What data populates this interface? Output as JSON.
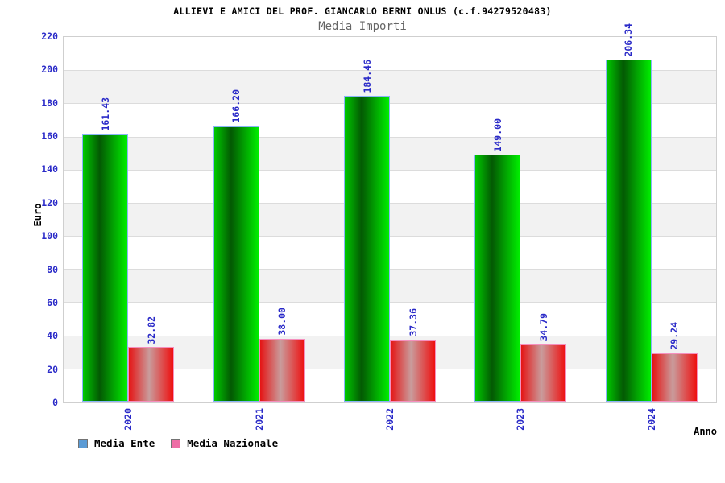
{
  "title": "ALLIEVI E AMICI DEL PROF. GIANCARLO BERNI ONLUS (c.f.94279520483)",
  "subtitle": "Media Importi",
  "axes": {
    "y_label": "Euro",
    "x_label": "Anno"
  },
  "legend": [
    {
      "label": "Media Ente",
      "swatch_color": "#5b9bd5"
    },
    {
      "label": "Media Nazionale",
      "swatch_color": "#ee6ea6"
    }
  ],
  "colors": {
    "text_blue": "#2a2ac8",
    "grid_line": "#dcdcdc",
    "band_gray": "#f2f2f2",
    "plot_border": "#cfcfcf",
    "green_bar_edge": "#8ab4f8",
    "red_bar_edge": "#f590be"
  },
  "chart_data": {
    "type": "bar",
    "title": "Media Importi",
    "xlabel": "Anno",
    "ylabel": "Euro",
    "categories": [
      "2020",
      "2021",
      "2022",
      "2023",
      "2024"
    ],
    "series": [
      {
        "name": "Media Ente",
        "values": [
          161.43,
          166.2,
          184.46,
          149.0,
          206.34
        ],
        "labels": [
          "161.43",
          "166.20",
          "184.46",
          "149.00",
          "206.34"
        ],
        "style": "green"
      },
      {
        "name": "Media Nazionale",
        "values": [
          32.82,
          38.0,
          37.36,
          34.79,
          29.24
        ],
        "labels": [
          "32.82",
          "38.00",
          "37.36",
          "34.79",
          "29.24"
        ],
        "style": "red"
      }
    ],
    "ylim": [
      0,
      220
    ],
    "ytick_step": 20,
    "y_tick_labels": [
      "220",
      "200",
      "180",
      "160",
      "140",
      "120",
      "100",
      "80",
      "60",
      "40",
      "20",
      "0"
    ],
    "grid": true,
    "banded_background": true,
    "value_labels_rotated": true,
    "legend_position": "bottom-left"
  }
}
